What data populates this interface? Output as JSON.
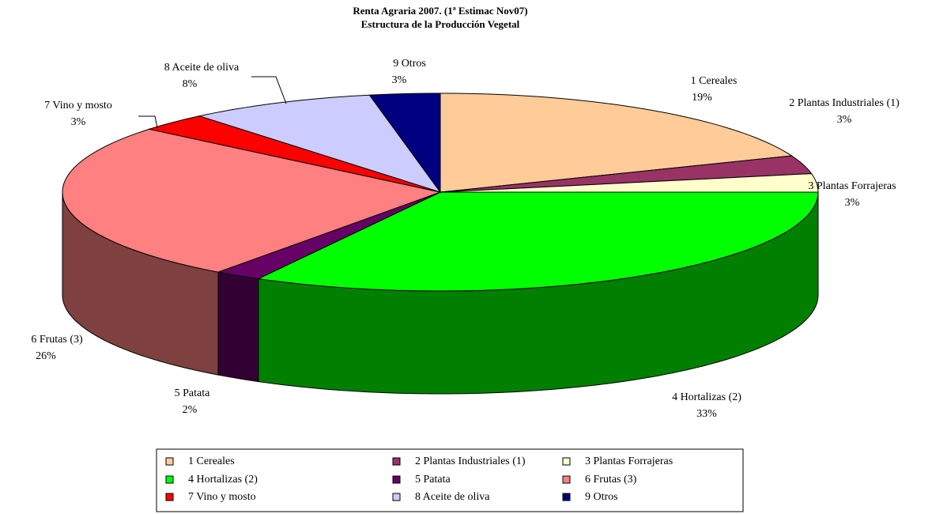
{
  "chart_data": {
    "type": "pie3d",
    "title": "Renta Agraria 2007. (1ª Estimac Nov07)",
    "subtitle": "Estructura de la Producción Vegetal",
    "categories": [
      "1  Cereales",
      "2  Plantas Industriales (1)",
      "3  Plantas Forrajeras",
      "4  Hortalizas (2)",
      "5  Patata",
      "6  Frutas (3)",
      "7  Vino y mosto",
      "8  Aceite de oliva",
      "9  Otros"
    ],
    "values": [
      19,
      3,
      3,
      33,
      2,
      26,
      3,
      8,
      3
    ],
    "value_labels": [
      "19%",
      "3%",
      "3%",
      "33%",
      "2%",
      "26%",
      "3%",
      "8%",
      "3%"
    ],
    "colors": [
      "#FFCC99",
      "#993366",
      "#FFFFCC",
      "#00FF00",
      "#660066",
      "#FF8080",
      "#FF0000",
      "#CCCCFF",
      "#000080"
    ],
    "legend": "bottom"
  }
}
